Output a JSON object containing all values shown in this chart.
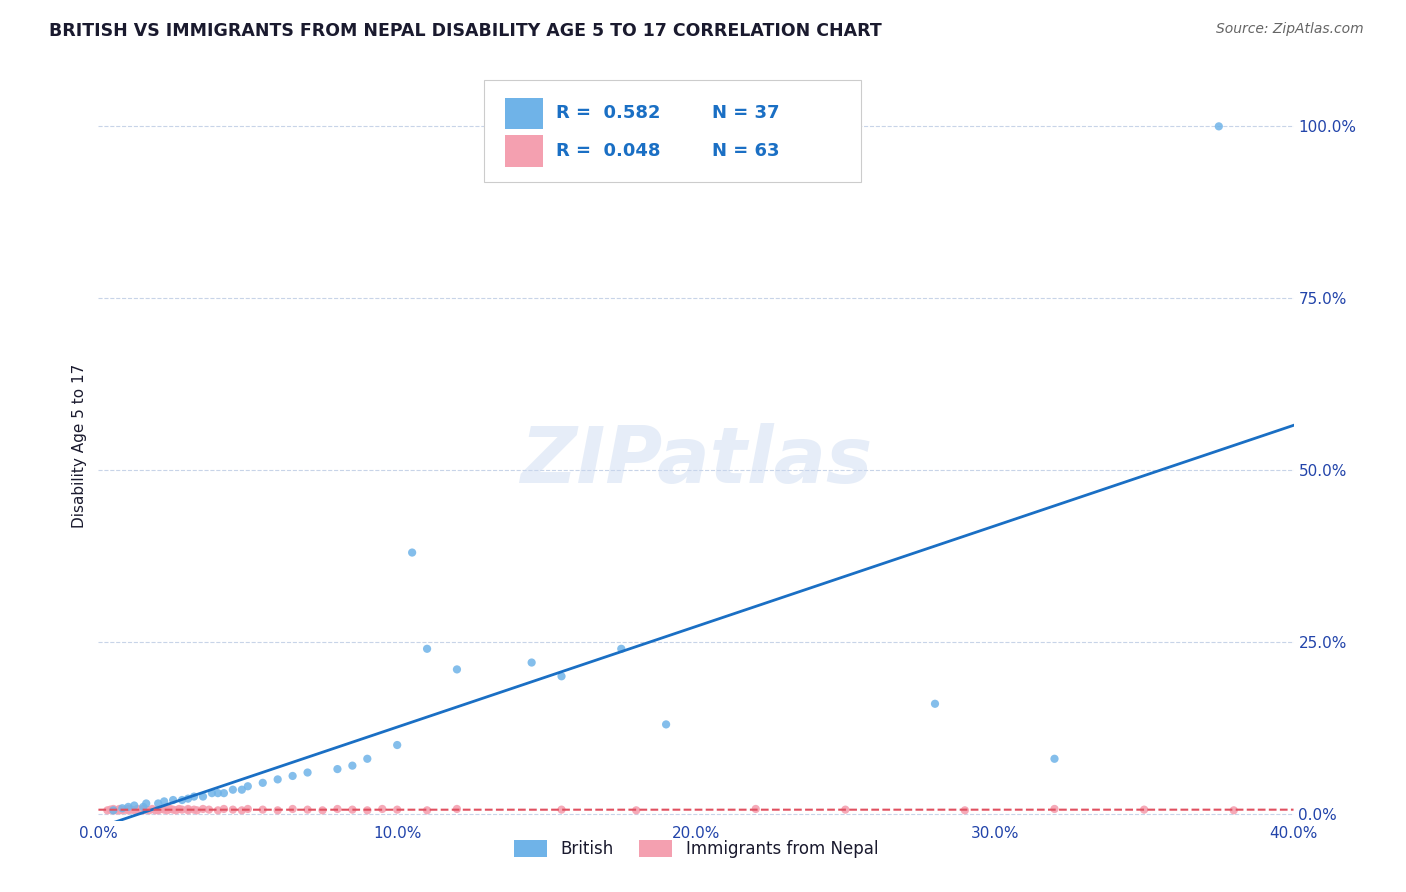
{
  "title": "BRITISH VS IMMIGRANTS FROM NEPAL DISABILITY AGE 5 TO 17 CORRELATION CHART",
  "source": "Source: ZipAtlas.com",
  "ylabel": "Disability Age 5 to 17",
  "x_ticklabels": [
    "0.0%",
    "10.0%",
    "20.0%",
    "30.0%",
    "40.0%"
  ],
  "x_ticks": [
    0.0,
    0.1,
    0.2,
    0.3,
    0.4
  ],
  "y_ticklabels_right": [
    "100.0%",
    "75.0%",
    "50.0%",
    "25.0%",
    "0.0%"
  ],
  "y_ticks": [
    1.0,
    0.75,
    0.5,
    0.25,
    0.0
  ],
  "xlim": [
    0.0,
    0.4
  ],
  "ylim": [
    -0.01,
    1.08
  ],
  "british_R": 0.582,
  "british_N": 37,
  "nepal_R": 0.048,
  "nepal_N": 63,
  "british_color": "#6fb3e8",
  "nepal_color": "#f4a0b0",
  "british_line_color": "#1a6fc4",
  "nepal_line_color": "#e05060",
  "watermark": "ZIPatlas",
  "legend_label_british": "British",
  "legend_label_nepal": "Immigrants from Nepal",
  "british_scatter_x": [
    0.005,
    0.008,
    0.01,
    0.012,
    0.015,
    0.016,
    0.02,
    0.022,
    0.025,
    0.028,
    0.03,
    0.032,
    0.035,
    0.038,
    0.04,
    0.042,
    0.045,
    0.048,
    0.05,
    0.055,
    0.06,
    0.065,
    0.07,
    0.08,
    0.085,
    0.09,
    0.1,
    0.105,
    0.11,
    0.12,
    0.145,
    0.155,
    0.175,
    0.19,
    0.28,
    0.32,
    0.375
  ],
  "british_scatter_y": [
    0.005,
    0.008,
    0.01,
    0.012,
    0.01,
    0.015,
    0.015,
    0.018,
    0.02,
    0.02,
    0.022,
    0.025,
    0.025,
    0.03,
    0.03,
    0.03,
    0.035,
    0.035,
    0.04,
    0.045,
    0.05,
    0.055,
    0.06,
    0.065,
    0.07,
    0.08,
    0.1,
    0.38,
    0.24,
    0.21,
    0.22,
    0.2,
    0.24,
    0.13,
    0.16,
    0.08,
    1.0
  ],
  "nepal_scatter_x": [
    0.003,
    0.004,
    0.005,
    0.005,
    0.006,
    0.007,
    0.007,
    0.008,
    0.009,
    0.01,
    0.01,
    0.011,
    0.012,
    0.013,
    0.013,
    0.014,
    0.015,
    0.015,
    0.016,
    0.017,
    0.018,
    0.019,
    0.02,
    0.02,
    0.021,
    0.022,
    0.023,
    0.024,
    0.025,
    0.026,
    0.027,
    0.028,
    0.03,
    0.03,
    0.032,
    0.033,
    0.035,
    0.037,
    0.04,
    0.042,
    0.045,
    0.048,
    0.05,
    0.055,
    0.06,
    0.065,
    0.07,
    0.075,
    0.08,
    0.085,
    0.09,
    0.095,
    0.1,
    0.11,
    0.12,
    0.155,
    0.18,
    0.22,
    0.25,
    0.29,
    0.32,
    0.35,
    0.38
  ],
  "nepal_scatter_y": [
    0.005,
    0.006,
    0.005,
    0.007,
    0.005,
    0.005,
    0.007,
    0.005,
    0.006,
    0.005,
    0.007,
    0.006,
    0.005,
    0.007,
    0.005,
    0.006,
    0.005,
    0.007,
    0.006,
    0.005,
    0.007,
    0.005,
    0.006,
    0.005,
    0.007,
    0.006,
    0.005,
    0.007,
    0.006,
    0.005,
    0.007,
    0.006,
    0.005,
    0.007,
    0.006,
    0.005,
    0.007,
    0.006,
    0.005,
    0.007,
    0.006,
    0.005,
    0.007,
    0.006,
    0.005,
    0.007,
    0.006,
    0.005,
    0.007,
    0.006,
    0.005,
    0.007,
    0.006,
    0.005,
    0.007,
    0.006,
    0.005,
    0.007,
    0.006,
    0.005,
    0.007,
    0.006,
    0.005
  ],
  "background_color": "#ffffff",
  "grid_color": "#c8d4e8",
  "title_color": "#1a1a2e",
  "axis_label_color": "#2244aa",
  "tick_label_color": "#2244aa"
}
